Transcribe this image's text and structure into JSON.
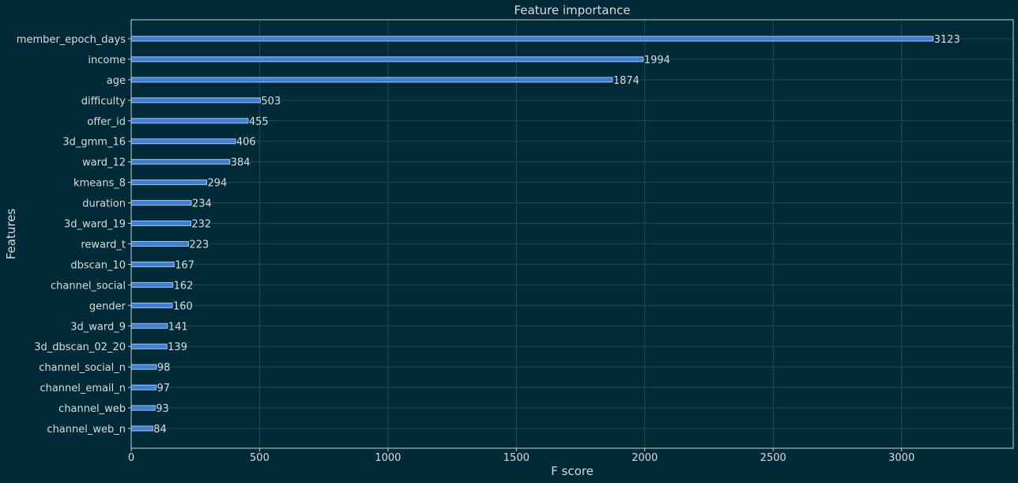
{
  "chart_data": {
    "type": "bar",
    "orientation": "horizontal",
    "title": "Feature importance",
    "xlabel": "F score",
    "ylabel": "Features",
    "xlim": [
      0,
      3435
    ],
    "xticks": [
      0,
      500,
      1000,
      1500,
      2000,
      2500,
      3000
    ],
    "grid": true,
    "categories": [
      "member_epoch_days",
      "income",
      "age",
      "difficulty",
      "offer_id",
      "3d_gmm_16",
      "ward_12",
      "kmeans_8",
      "duration",
      "3d_ward_19",
      "reward_t",
      "dbscan_10",
      "channel_social",
      "gender",
      "3d_ward_9",
      "3d_dbscan_02_20",
      "channel_social_n",
      "channel_email_n",
      "channel_web",
      "channel_web_n"
    ],
    "values": [
      3123,
      1994,
      1874,
      503,
      455,
      406,
      384,
      294,
      234,
      232,
      223,
      167,
      162,
      160,
      141,
      139,
      98,
      97,
      93,
      84
    ],
    "colors": {
      "background": "#002b36",
      "bar": "#3b7fd9",
      "bar_edge": "#a9c4e8",
      "grid": "#1b4a57",
      "axis": "#c8d0d2",
      "text": "#d6dde0"
    }
  }
}
